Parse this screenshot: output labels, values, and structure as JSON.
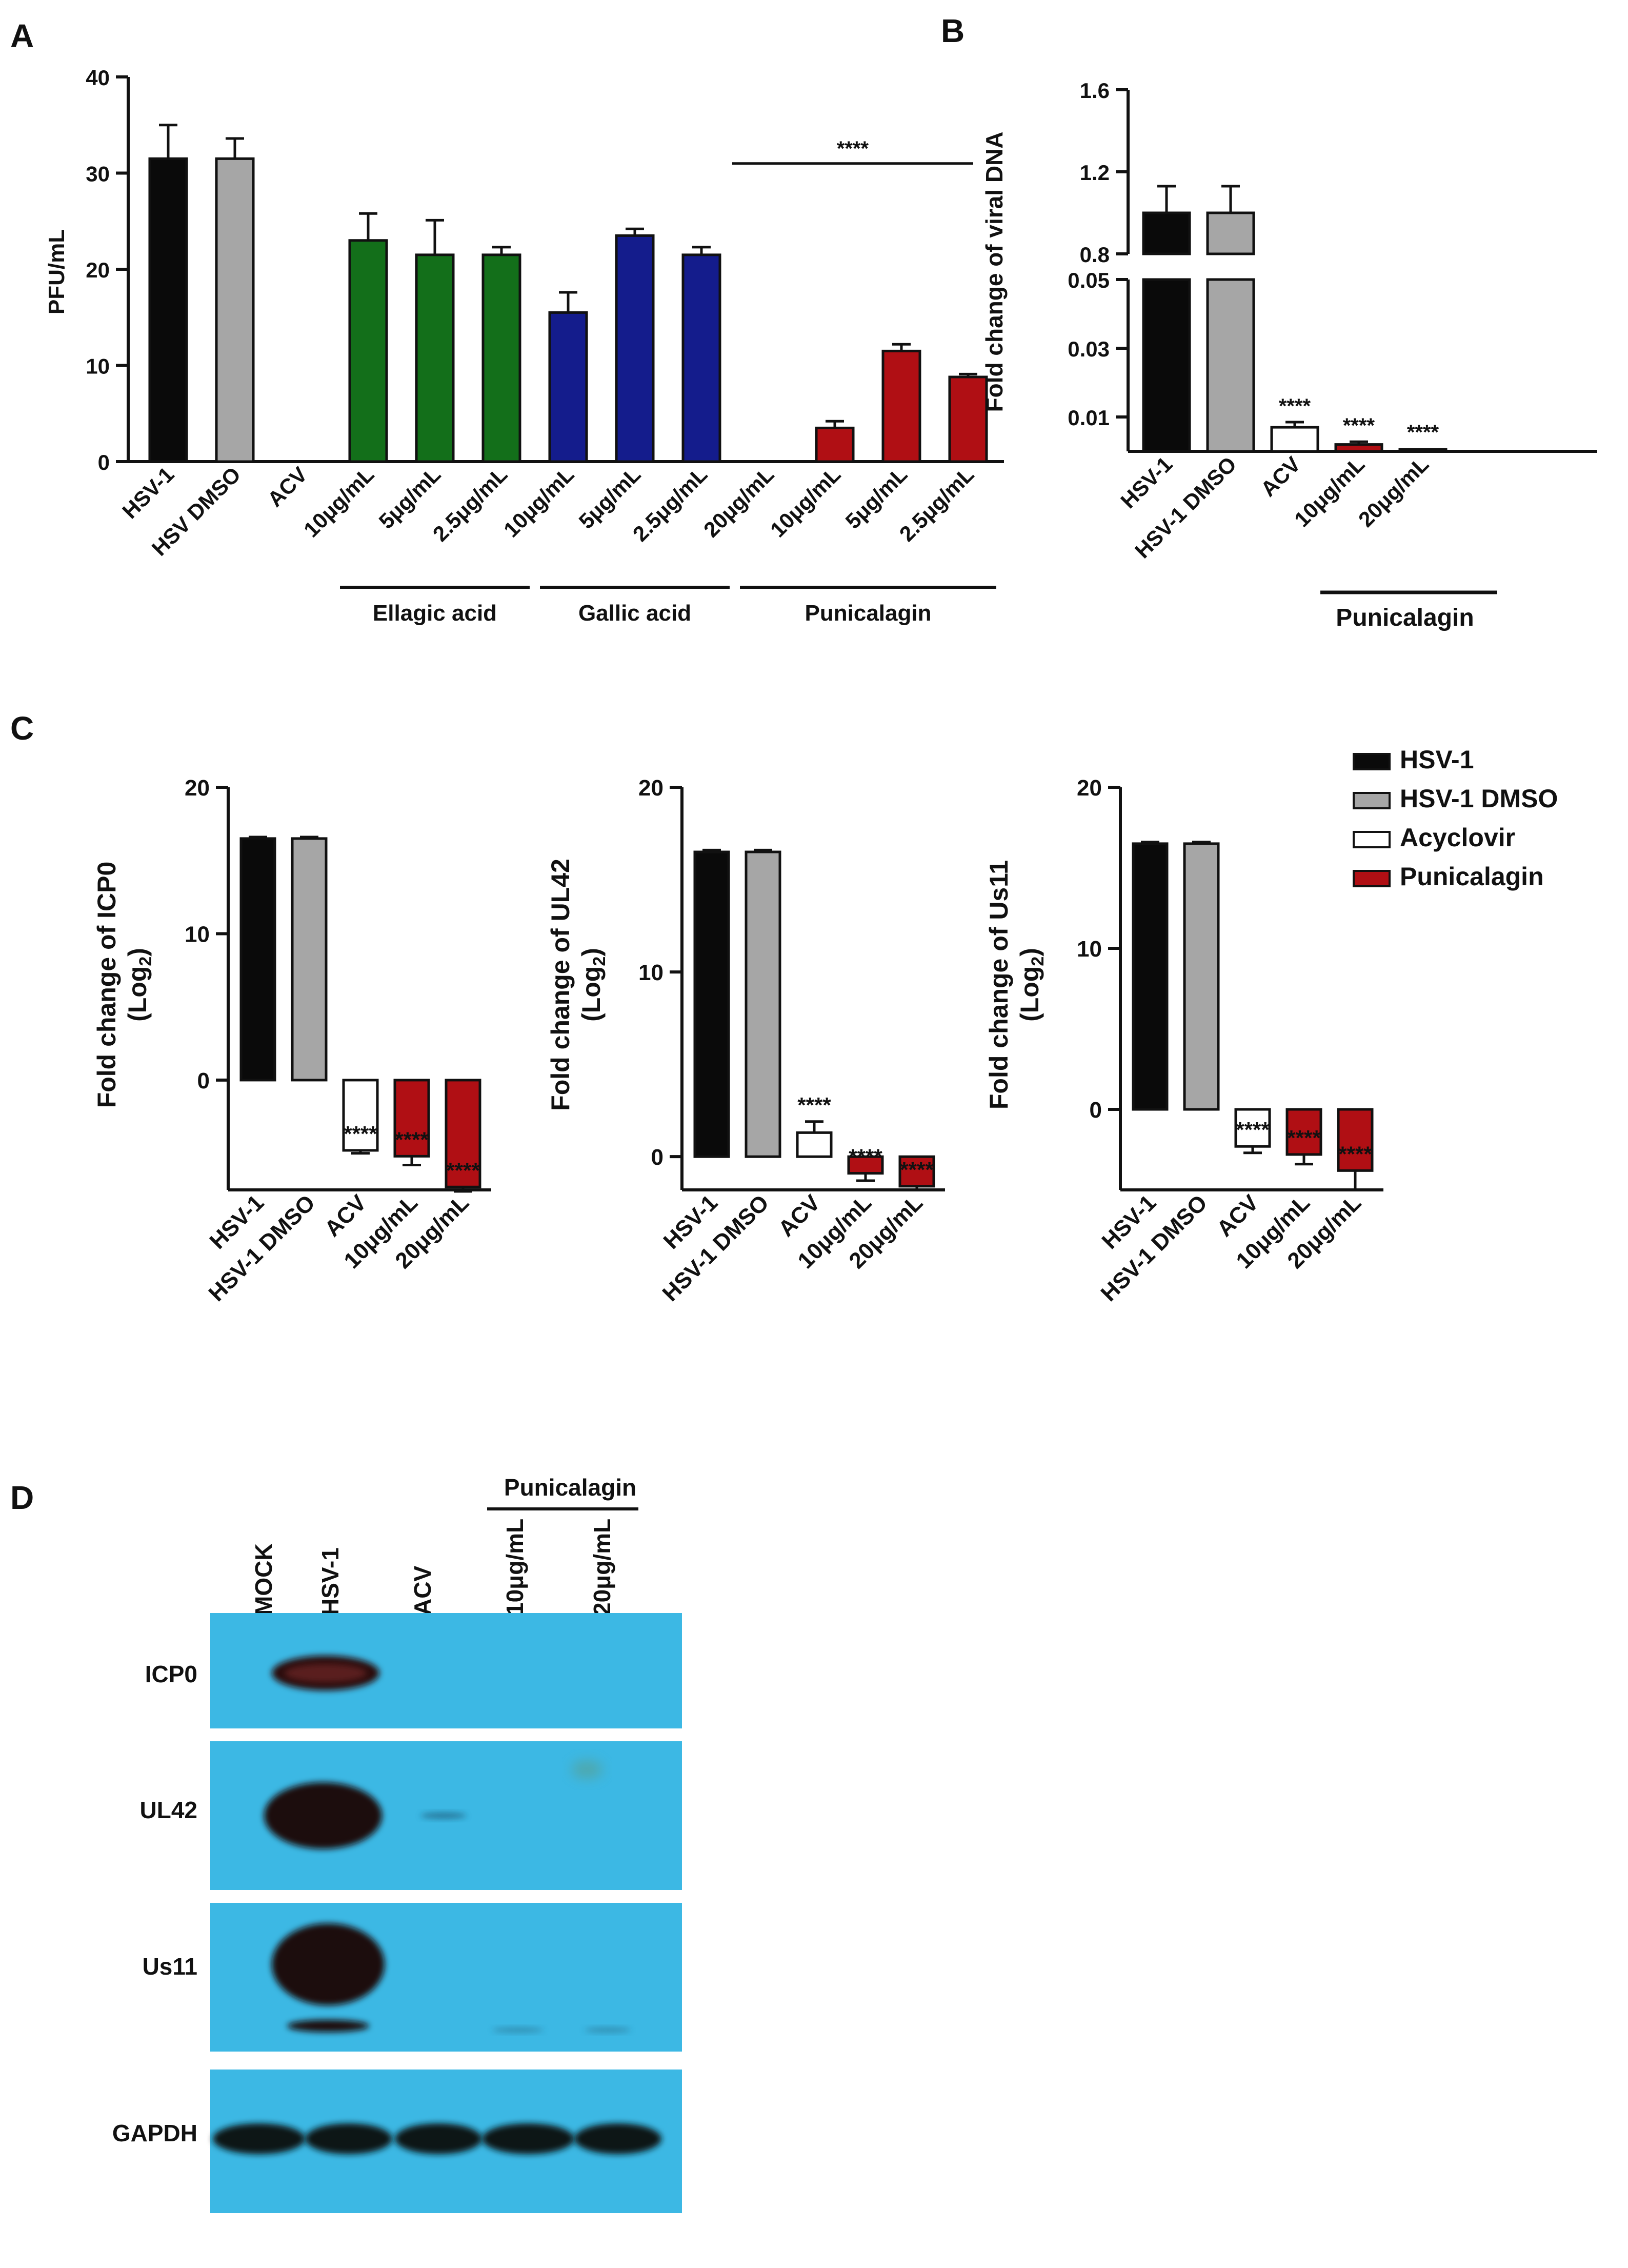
{
  "panel_labels": [
    "A",
    "B",
    "C",
    "D"
  ],
  "colors": {
    "black": "#0a0a0a",
    "gray": "#a6a6a6",
    "white": "#ffffff",
    "green": "#136f1a",
    "blue": "#141c8c",
    "red": "#b00f14",
    "blot_bg": "#3cb8e4"
  },
  "chart_data": [
    {
      "id": "A",
      "type": "bar",
      "ylabel": "PFU/mL",
      "ylim": [
        0,
        40
      ],
      "yticks": [
        0,
        10,
        20,
        30,
        40
      ],
      "categories": [
        "HSV-1",
        "HSV DMSO",
        "ACV",
        "10μg/mL",
        "5μg/mL",
        "2.5μg/mL",
        "10μg/mL",
        "5μg/mL",
        "2.5μg/mL",
        "20μg/mL",
        "10μg/mL",
        "5μg/mL",
        "2.5μg/mL"
      ],
      "values": [
        31.5,
        31.5,
        0,
        23,
        21.5,
        21.5,
        15.5,
        23.5,
        21.5,
        0,
        3.5,
        11.5,
        8.8
      ],
      "errors": [
        3.5,
        2.1,
        0,
        2.8,
        3.6,
        0.8,
        2.1,
        0.7,
        0.8,
        0,
        0.7,
        0.7,
        0.3
      ],
      "colors": [
        "black",
        "gray",
        "white",
        "green",
        "green",
        "green",
        "blue",
        "blue",
        "blue",
        "red",
        "red",
        "red",
        "red"
      ],
      "groups": [
        {
          "label": "Ellagic acid",
          "from": 3,
          "to": 5
        },
        {
          "label": "Gallic acid",
          "from": 6,
          "to": 8
        },
        {
          "label": "Punicalagin",
          "from": 9,
          "to": 12
        }
      ],
      "annotations": [
        {
          "text": "****",
          "from": 9,
          "to": 12,
          "y": 31
        }
      ]
    },
    {
      "id": "B",
      "type": "bar",
      "ylabel": "Fold change of viral DNA",
      "axis_break": true,
      "lower_ylim": [
        0,
        0.05
      ],
      "lower_yticks": [
        0.01,
        0.03,
        0.05
      ],
      "upper_ylim": [
        0.8,
        1.6
      ],
      "upper_yticks": [
        0.8,
        1.2,
        1.6
      ],
      "categories": [
        "HSV-1",
        "HSV-1 DMSO",
        "ACV",
        "10μg/mL",
        "20μg/mL"
      ],
      "values": [
        1.0,
        1.0,
        0.007,
        0.002,
        0.0003
      ],
      "errors": [
        0.13,
        0.13,
        0.0015,
        0.0008,
        0
      ],
      "colors": [
        "black",
        "gray",
        "white",
        "red",
        "red"
      ],
      "sig": [
        "",
        "",
        "****",
        "****",
        "****"
      ],
      "groups": [
        {
          "label": "Punicalagin",
          "from": 3,
          "to": 4
        }
      ]
    },
    {
      "id": "C1",
      "type": "bar",
      "ylabel_line1": "Fold change of ICP0",
      "ylabel_line2": "(Log",
      "ylabel_sub": "2",
      "ylabel_close": ")",
      "ylim": [
        -7.5,
        20
      ],
      "yticks": [
        0,
        10,
        20
      ],
      "categories": [
        "HSV-1",
        "HSV-1 DMSO",
        "ACV",
        "10μg/mL",
        "20μg/mL"
      ],
      "values": [
        16.5,
        16.5,
        -4.8,
        -5.2,
        -7.3
      ],
      "errors": [
        0.1,
        0.1,
        0.2,
        0.6,
        0.3
      ],
      "colors": [
        "black",
        "gray",
        "white",
        "red",
        "red"
      ],
      "sig": [
        "",
        "",
        "****",
        "****",
        "****"
      ]
    },
    {
      "id": "C2",
      "type": "bar",
      "ylabel_line1": "Fold change of UL42",
      "ylabel_line2": "(Log",
      "ylabel_sub": "2",
      "ylabel_close": ")",
      "ylim": [
        -1.8,
        20
      ],
      "yticks": [
        0,
        10,
        20
      ],
      "categories": [
        "HSV-1",
        "HSV-1 DMSO",
        "ACV",
        "10μg/mL",
        "20μg/mL"
      ],
      "values": [
        16.5,
        16.5,
        1.3,
        -0.9,
        -1.6
      ],
      "errors": [
        0.1,
        0.1,
        0.6,
        0.4,
        0.2
      ],
      "colors": [
        "black",
        "gray",
        "white",
        "red",
        "red"
      ],
      "sig": [
        "",
        "",
        "****",
        "****",
        "****"
      ]
    },
    {
      "id": "C3",
      "type": "bar",
      "ylabel_line1": "Fold change of Us11",
      "ylabel_line2": "(Log",
      "ylabel_sub": "2",
      "ylabel_close": ")",
      "ylim": [
        -5,
        20
      ],
      "yticks": [
        0,
        10,
        20
      ],
      "categories": [
        "HSV-1",
        "HSV-1 DMSO",
        "ACV",
        "10μg/mL",
        "20μg/mL"
      ],
      "values": [
        16.5,
        16.5,
        -2.3,
        -2.8,
        -3.8
      ],
      "errors": [
        0.1,
        0.1,
        0.4,
        0.6,
        1.2
      ],
      "colors": [
        "black",
        "gray",
        "white",
        "red",
        "red"
      ],
      "sig": [
        "",
        "",
        "****",
        "****",
        "****"
      ]
    }
  ],
  "legend": [
    {
      "label": "HSV-1",
      "color": "black"
    },
    {
      "label": "HSV-1 DMSO",
      "color": "gray"
    },
    {
      "label": "Acyclovir",
      "color": "white"
    },
    {
      "label": "Punicalagin",
      "color": "red"
    }
  ],
  "blot": {
    "group_label": "Punicalagin",
    "lanes": [
      "MOCK",
      "HSV-1",
      "ACV",
      "10μg/mL",
      "20μg/mL"
    ],
    "rows": [
      "ICP0",
      "UL42",
      "Us11",
      "GAPDH"
    ]
  }
}
